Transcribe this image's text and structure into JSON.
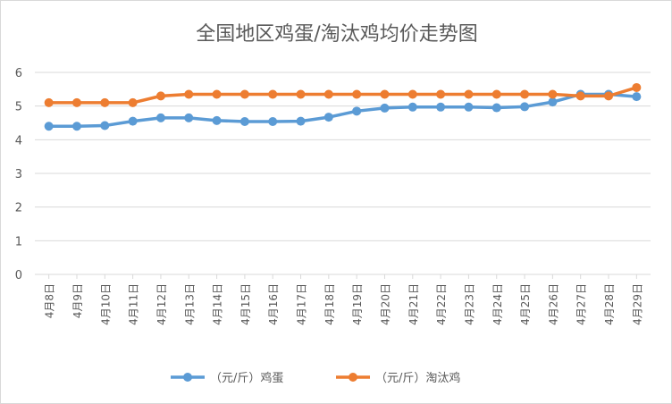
{
  "chart_data": {
    "type": "line",
    "title": "全国地区鸡蛋/淘汰鸡均价走势图",
    "categories": [
      "4月8日",
      "4月9日",
      "4月10日",
      "4月11日",
      "4月12日",
      "4月13日",
      "4月14日",
      "4月15日",
      "4月16日",
      "4月17日",
      "4月18日",
      "4月19日",
      "4月20日",
      "4月21日",
      "4月22日",
      "4月23日",
      "4月24日",
      "4月25日",
      "4月26日",
      "4月27日",
      "4月28日",
      "4月29日"
    ],
    "ylim": [
      0,
      6
    ],
    "yticks": [
      "0",
      "1",
      "2",
      "3",
      "4",
      "5",
      "6"
    ],
    "grid": true,
    "legend_position": "bottom",
    "series": [
      {
        "name": "（元/斤）鸡蛋",
        "color": "#5b9bd5",
        "values": [
          4.4,
          4.4,
          4.42,
          4.55,
          4.65,
          4.65,
          4.57,
          4.54,
          4.54,
          4.55,
          4.67,
          4.85,
          4.94,
          4.97,
          4.97,
          4.97,
          4.95,
          4.98,
          5.12,
          5.35,
          5.35,
          5.28
        ]
      },
      {
        "name": "（元/斤）淘汰鸡",
        "color": "#ed7d31",
        "values": [
          5.1,
          5.1,
          5.1,
          5.1,
          5.3,
          5.35,
          5.35,
          5.35,
          5.35,
          5.35,
          5.35,
          5.35,
          5.35,
          5.35,
          5.35,
          5.35,
          5.35,
          5.35,
          5.35,
          5.3,
          5.3,
          5.55
        ]
      }
    ]
  }
}
